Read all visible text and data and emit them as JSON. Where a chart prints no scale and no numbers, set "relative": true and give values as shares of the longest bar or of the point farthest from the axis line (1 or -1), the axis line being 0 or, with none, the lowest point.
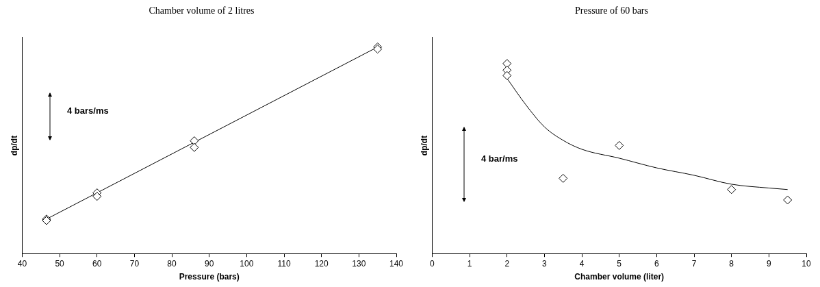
{
  "chart_data": [
    {
      "type": "scatter",
      "title": "Chamber volume of 2 litres",
      "xlabel": "Pressure (bars)",
      "ylabel": "dp/dt",
      "relative": true,
      "xlim": [
        40,
        140
      ],
      "xticks": [
        40,
        50,
        60,
        70,
        80,
        90,
        100,
        110,
        120,
        130,
        140
      ],
      "grid": false,
      "legend": false,
      "marker": "diamond",
      "annotations": [
        "4 bars/ms"
      ],
      "series": [
        {
          "color": "#000000",
          "x": [
            46.5,
            46.5,
            60,
            60,
            86,
            86,
            135,
            135
          ],
          "values": [
            0.167,
            0.16,
            0.294,
            0.277,
            0.546,
            0.514,
            1.0,
            0.99
          ]
        },
        {
          "type": "line",
          "color": "#000000",
          "marker": "none",
          "x": [
            46.5,
            135
          ],
          "values": [
            0.167,
            1.0
          ]
        }
      ]
    },
    {
      "type": "scatter",
      "title": "Pressure of 60 bars",
      "xlabel": "Chamber volume (liter)",
      "ylabel": "dp/dt",
      "relative": true,
      "xlim": [
        0,
        10
      ],
      "xticks": [
        0,
        1,
        2,
        3,
        4,
        5,
        6,
        7,
        8,
        9,
        10
      ],
      "grid": false,
      "legend": false,
      "marker": "diamond",
      "annotations": [
        "4 bar/ms"
      ],
      "series": [
        {
          "color": "#000000",
          "x": [
            2,
            2,
            2,
            3.5,
            5,
            8,
            9.5
          ],
          "values": [
            1.0,
            0.965,
            0.937,
            0.396,
            0.569,
            0.337,
            0.282
          ]
        },
        {
          "type": "line",
          "color": "#000000",
          "marker": "none",
          "x": [
            2,
            2.5,
            3,
            3.5,
            4,
            5,
            6,
            7,
            8,
            9,
            9.5
          ],
          "values": [
            0.922,
            0.784,
            0.667,
            0.596,
            0.549,
            0.502,
            0.451,
            0.412,
            0.365,
            0.345,
            0.337
          ]
        }
      ]
    }
  ]
}
